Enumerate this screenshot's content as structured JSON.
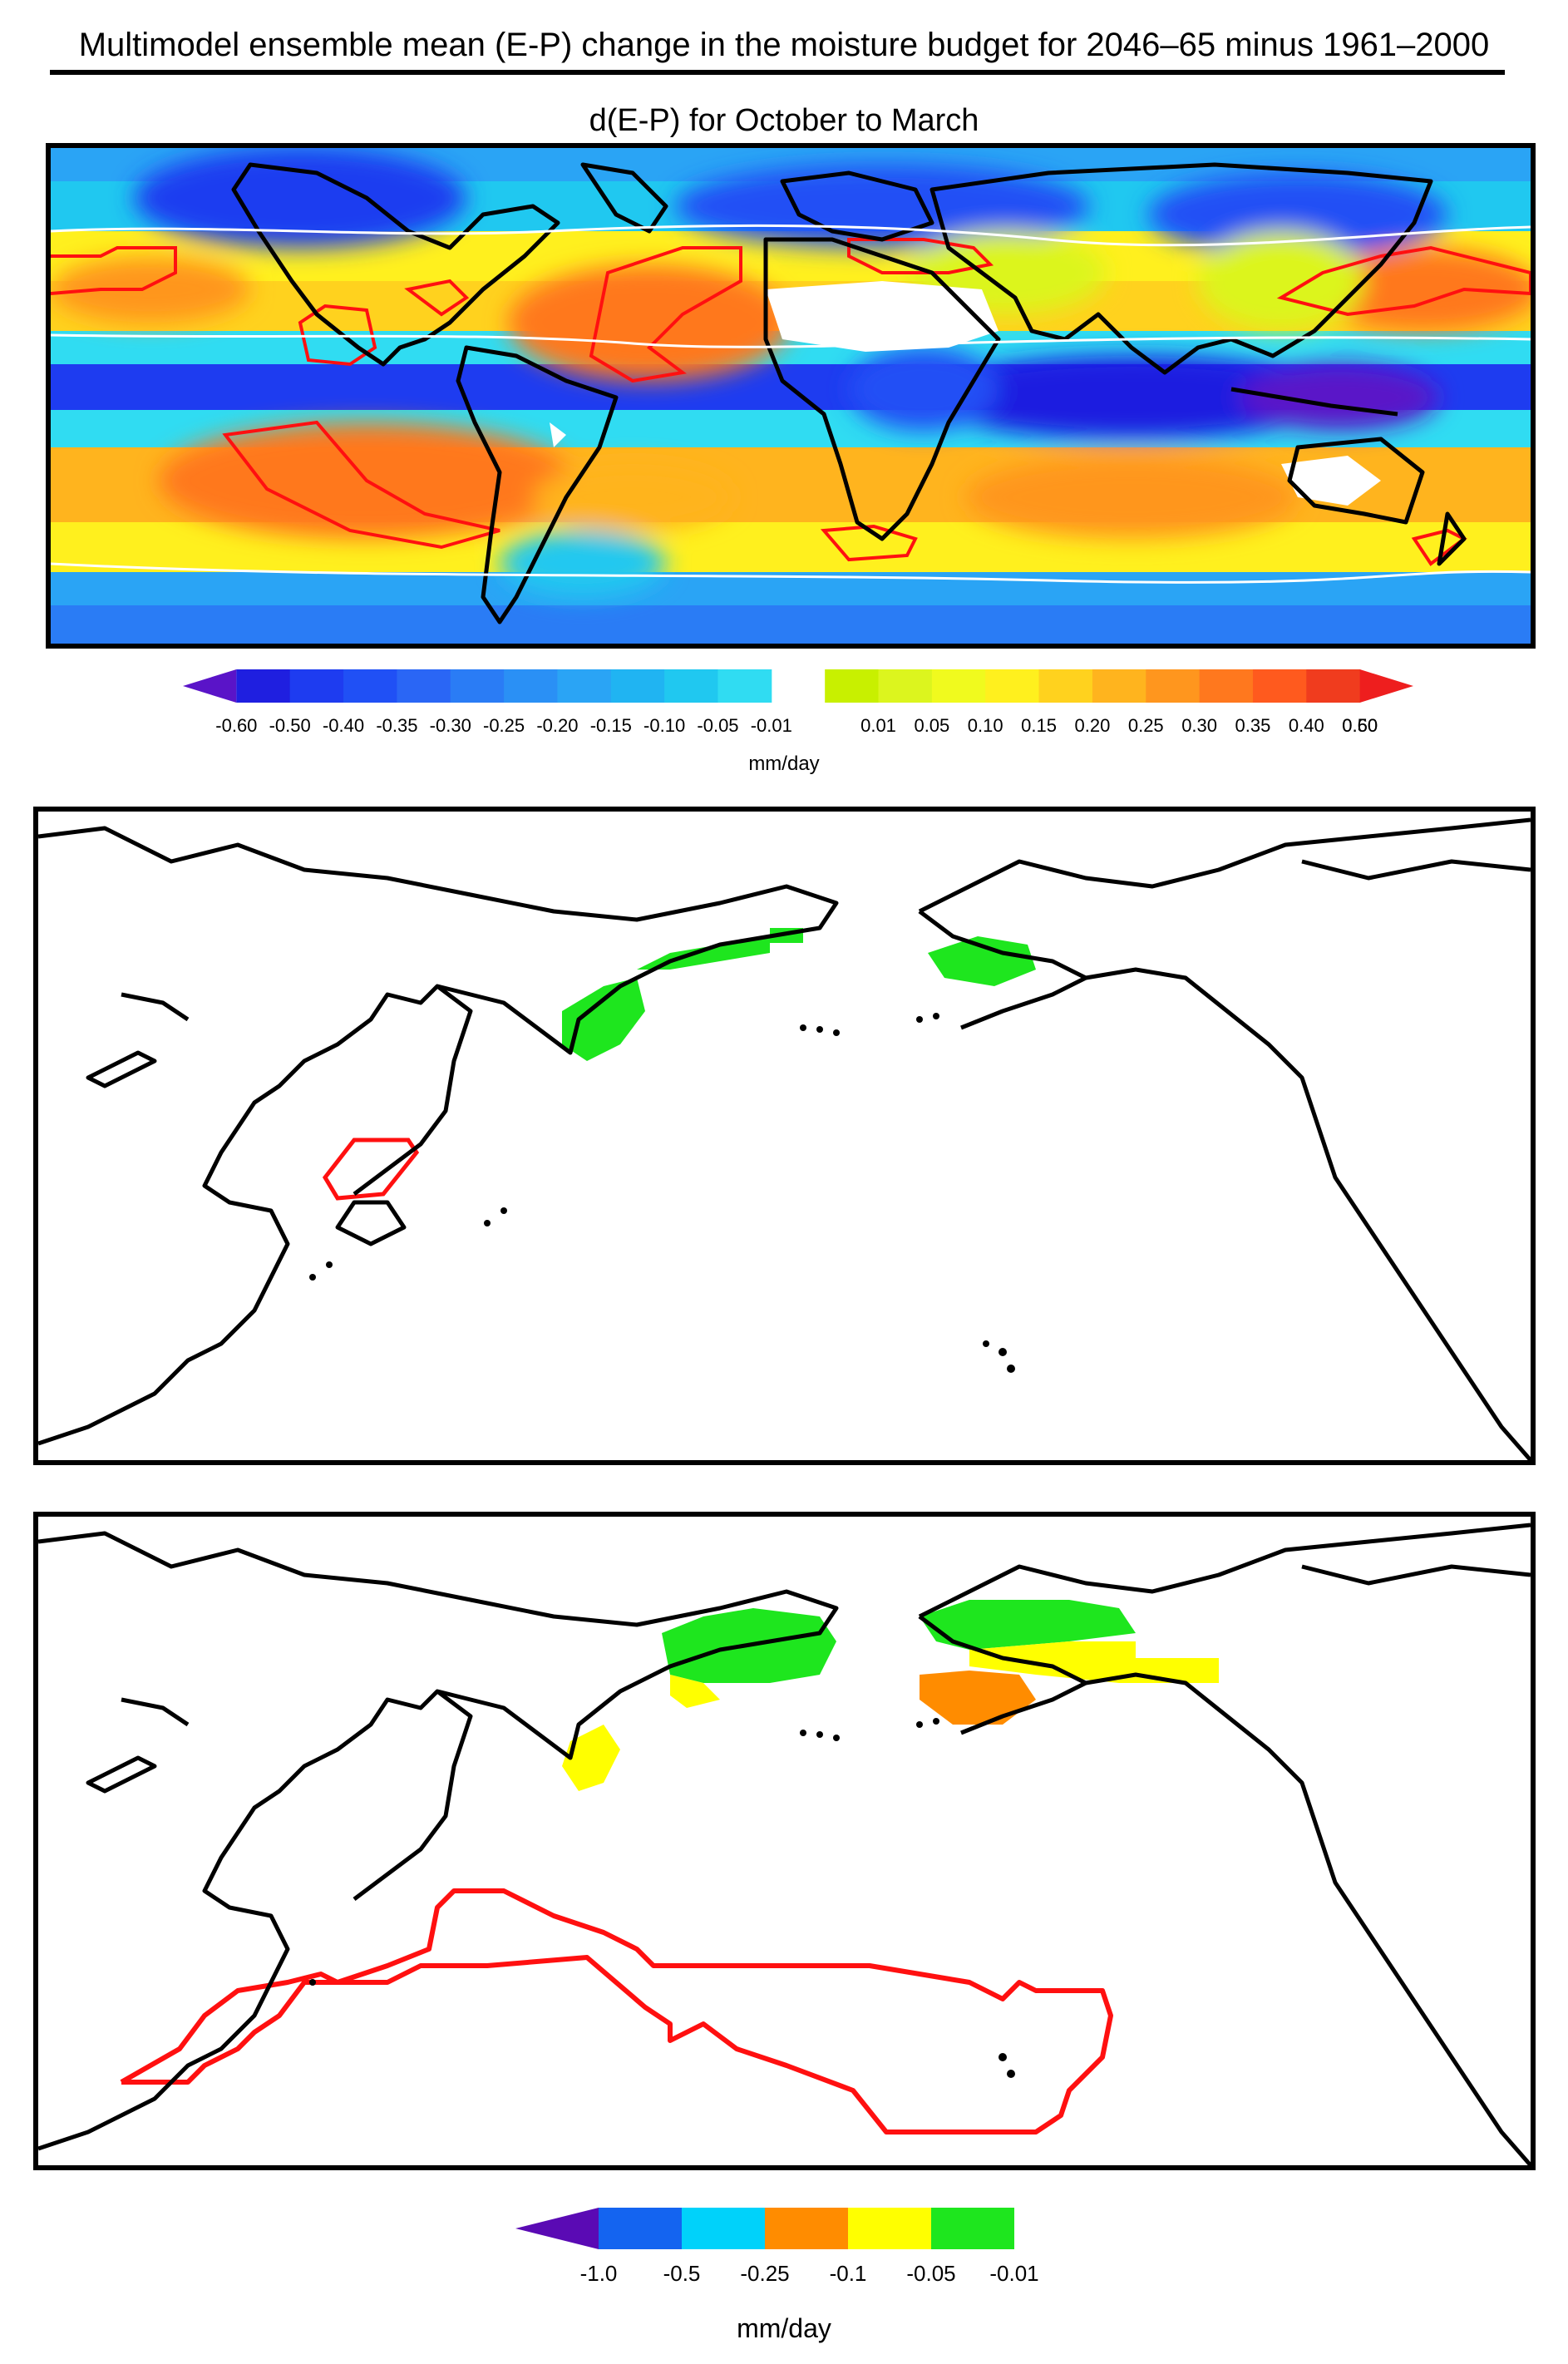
{
  "header": {
    "title": "Multimodel ensemble mean (E-P) change in the moisture budget for 2046–65 minus 1961–2000",
    "subtitle": "d(E-P) for October to March"
  },
  "colorbar_top": {
    "labels": [
      "-0.60",
      "-0.50",
      "-0.40",
      "-0.35",
      "-0.30",
      "-0.25",
      "-0.20",
      "-0.15",
      "-0.10",
      "-0.05",
      "-0.01",
      "0.01",
      "0.05",
      "0.10",
      "0.15",
      "0.20",
      "0.25",
      "0.30",
      "0.35",
      "0.40",
      "0.50",
      "0.60"
    ],
    "colors": [
      "#5a14c8",
      "#1f1fe0",
      "#1e3cf0",
      "#2050f5",
      "#2a66f5",
      "#2a7cf5",
      "#2a90f5",
      "#2aa4f5",
      "#20b4f2",
      "#20c8f0",
      "#30dcf2",
      "#c8f000",
      "#dcf51e",
      "#f0fa1e",
      "#fff01e",
      "#ffd21e",
      "#ffb41e",
      "#ff961e",
      "#ff781e",
      "#ff5a1e",
      "#f03c1e",
      "#ee1e1e"
    ],
    "unit": "mm/day"
  },
  "colorbar_bottom": {
    "labels": [
      "-1.0",
      "-0.5",
      "-0.25",
      "-0.1",
      "-0.05",
      "-0.01"
    ],
    "colors": [
      "#5a0ab4",
      "#1464f0",
      "#00d2fa",
      "#ff8c00",
      "#ffff00",
      "#1ee61e"
    ],
    "unit": "mm/day"
  }
}
